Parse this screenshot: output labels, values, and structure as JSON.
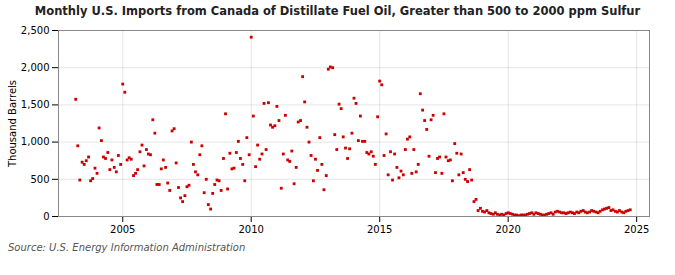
{
  "chart_data": {
    "type": "scatter",
    "title": "Monthly U.S. Imports from Canada of Distillate Fuel Oil, Greater than 500 to 2000 ppm Sulfur",
    "ylabel": "Thousand Barrels",
    "caption": "Source: U.S. Energy Information Administration",
    "color": "#cc0000",
    "marker": "square",
    "grid": true,
    "xlim": [
      2002.5,
      2025.5
    ],
    "xticks": [
      2005,
      2010,
      2015,
      2020,
      2025
    ],
    "ylim": [
      0,
      2500
    ],
    "yticks": [
      0,
      500,
      {
        "value": 1000,
        "label": "1,000"
      },
      {
        "value": 1500,
        "label": "1,500"
      },
      {
        "value": 2000,
        "label": "2,000"
      },
      {
        "value": 2500,
        "label": "2,500"
      }
    ],
    "x": [
      2003.17,
      2003.25,
      2003.33,
      2003.42,
      2003.5,
      2003.58,
      2003.67,
      2003.75,
      2003.83,
      2003.92,
      2004.0,
      2004.08,
      2004.17,
      2004.25,
      2004.33,
      2004.42,
      2004.5,
      2004.58,
      2004.67,
      2004.75,
      2004.83,
      2004.92,
      2005.0,
      2005.08,
      2005.17,
      2005.25,
      2005.33,
      2005.42,
      2005.5,
      2005.58,
      2005.67,
      2005.75,
      2005.83,
      2005.92,
      2006.0,
      2006.08,
      2006.17,
      2006.25,
      2006.33,
      2006.42,
      2006.5,
      2006.58,
      2006.67,
      2006.75,
      2006.83,
      2006.92,
      2007.0,
      2007.08,
      2007.17,
      2007.25,
      2007.33,
      2007.42,
      2007.5,
      2007.58,
      2007.67,
      2007.75,
      2007.83,
      2007.92,
      2008.0,
      2008.08,
      2008.17,
      2008.25,
      2008.33,
      2008.42,
      2008.5,
      2008.58,
      2008.67,
      2008.75,
      2008.83,
      2008.92,
      2009.0,
      2009.08,
      2009.17,
      2009.25,
      2009.33,
      2009.42,
      2009.5,
      2009.58,
      2009.67,
      2009.75,
      2009.83,
      2009.92,
      2010.0,
      2010.08,
      2010.17,
      2010.25,
      2010.33,
      2010.42,
      2010.5,
      2010.58,
      2010.67,
      2010.75,
      2010.83,
      2010.92,
      2011.0,
      2011.08,
      2011.17,
      2011.25,
      2011.33,
      2011.42,
      2011.5,
      2011.58,
      2011.67,
      2011.75,
      2011.83,
      2011.92,
      2012.0,
      2012.08,
      2012.17,
      2012.25,
      2012.33,
      2012.42,
      2012.5,
      2012.58,
      2012.67,
      2012.75,
      2012.83,
      2012.92,
      2013.0,
      2013.08,
      2013.17,
      2013.25,
      2013.33,
      2013.42,
      2013.5,
      2013.58,
      2013.67,
      2013.75,
      2013.83,
      2013.92,
      2014.0,
      2014.08,
      2014.17,
      2014.25,
      2014.33,
      2014.42,
      2014.5,
      2014.58,
      2014.67,
      2014.75,
      2014.83,
      2014.92,
      2015.0,
      2015.08,
      2015.17,
      2015.25,
      2015.33,
      2015.42,
      2015.5,
      2015.58,
      2015.67,
      2015.75,
      2015.83,
      2015.92,
      2016.0,
      2016.08,
      2016.17,
      2016.25,
      2016.33,
      2016.42,
      2016.5,
      2016.58,
      2016.67,
      2016.75,
      2016.83,
      2016.92,
      2017.0,
      2017.08,
      2017.17,
      2017.25,
      2017.33,
      2017.42,
      2017.5,
      2017.58,
      2017.67,
      2017.75,
      2017.83,
      2017.92,
      2018.0,
      2018.08,
      2018.17,
      2018.25,
      2018.33,
      2018.42,
      2018.5,
      2018.58,
      2018.67,
      2018.75,
      2018.83,
      2018.92,
      2019.0,
      2019.08,
      2019.17,
      2019.25,
      2019.33,
      2019.42,
      2019.5,
      2019.58,
      2019.67,
      2019.75,
      2019.83,
      2019.92,
      2020.0,
      2020.08,
      2020.17,
      2020.25,
      2020.33,
      2020.42,
      2020.5,
      2020.58,
      2020.67,
      2020.75,
      2020.83,
      2020.92,
      2021.0,
      2021.08,
      2021.17,
      2021.25,
      2021.33,
      2021.42,
      2021.5,
      2021.58,
      2021.67,
      2021.75,
      2021.83,
      2021.92,
      2022.0,
      2022.08,
      2022.17,
      2022.25,
      2022.33,
      2022.42,
      2022.5,
      2022.58,
      2022.67,
      2022.75,
      2022.83,
      2022.92,
      2023.0,
      2023.08,
      2023.17,
      2023.25,
      2023.33,
      2023.42,
      2023.5,
      2023.58,
      2023.67,
      2023.75,
      2023.83,
      2023.92,
      2024.0,
      2024.08,
      2024.17,
      2024.25,
      2024.33,
      2024.42,
      2024.5,
      2024.58,
      2024.67,
      2024.75
    ],
    "values": [
      1575,
      950,
      490,
      730,
      700,
      750,
      800,
      480,
      510,
      650,
      580,
      1190,
      1020,
      800,
      780,
      860,
      630,
      760,
      660,
      600,
      820,
      700,
      1780,
      1670,
      760,
      790,
      770,
      550,
      580,
      630,
      870,
      960,
      680,
      900,
      840,
      830,
      1300,
      1120,
      430,
      430,
      640,
      760,
      660,
      450,
      350,
      1150,
      1180,
      720,
      390,
      250,
      200,
      280,
      400,
      420,
      1000,
      700,
      600,
      560,
      830,
      950,
      320,
      500,
      160,
      100,
      310,
      430,
      490,
      480,
      350,
      780,
      1380,
      370,
      850,
      640,
      650,
      860,
      1010,
      780,
      700,
      480,
      1060,
      830,
      2410,
      1350,
      670,
      960,
      770,
      840,
      1520,
      900,
      1530,
      1230,
      1200,
      1220,
      1480,
      1290,
      380,
      840,
      1360,
      760,
      740,
      880,
      440,
      660,
      1270,
      1290,
      1880,
      1540,
      1200,
      1000,
      820,
      480,
      770,
      620,
      1060,
      700,
      360,
      550,
      1980,
      2010,
      2000,
      1100,
      900,
      1510,
      1450,
      1070,
      920,
      780,
      910,
      1120,
      1590,
      1520,
      1020,
      1350,
      1010,
      1010,
      860,
      840,
      870,
      810,
      700,
      1340,
      1820,
      1770,
      820,
      1110,
      560,
      870,
      490,
      840,
      660,
      520,
      610,
      560,
      900,
      1040,
      1070,
      580,
      900,
      600,
      700,
      1650,
      1430,
      1290,
      1170,
      810,
      1300,
      1360,
      590,
      780,
      800,
      580,
      1380,
      800,
      750,
      760,
      480,
      980,
      850,
      560,
      840,
      590,
      500,
      470,
      630,
      490,
      200,
      230,
      80,
      110,
      70,
      60,
      80,
      50,
      40,
      30,
      50,
      30,
      20,
      30,
      20,
      40,
      50,
      40,
      30,
      20,
      20,
      10,
      20,
      20,
      20,
      30,
      40,
      50,
      30,
      50,
      40,
      30,
      20,
      20,
      30,
      40,
      50,
      30,
      60,
      70,
      60,
      50,
      50,
      40,
      50,
      60,
      50,
      40,
      60,
      50,
      70,
      80,
      60,
      50,
      60,
      80,
      70,
      60,
      50,
      70,
      90,
      100,
      110,
      120,
      80,
      90,
      70,
      60,
      80,
      60,
      50,
      70,
      80,
      90
    ]
  }
}
